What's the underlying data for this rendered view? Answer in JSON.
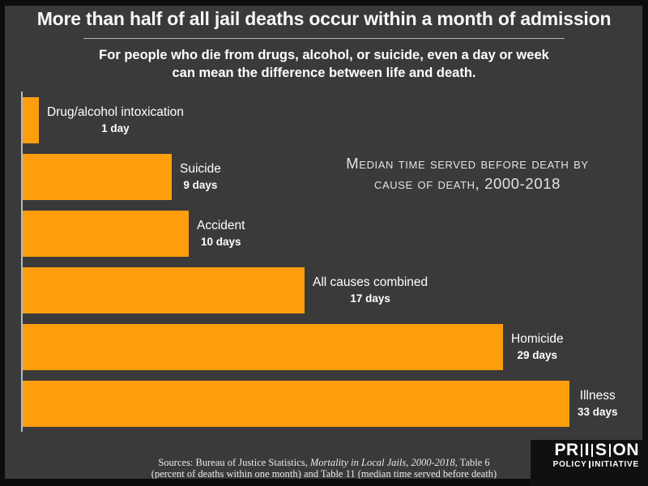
{
  "title": "More than half of all jail deaths occur within a month of admission",
  "subtitle": {
    "line1": "For people who die from drugs, alcohol, or suicide, even a day or week",
    "line2": "can mean the difference between life and death."
  },
  "chart_title": {
    "line1": "Median time served before death by",
    "line2": "cause of death, 2000-2018"
  },
  "chart_data": {
    "type": "bar",
    "orientation": "horizontal",
    "title": "Median time served before death by cause of death, 2000-2018",
    "unit": "days",
    "categories": [
      "Drug/alcohol intoxication",
      "Suicide",
      "Accident",
      "All causes combined",
      "Homicide",
      "Illness"
    ],
    "values": [
      1,
      9,
      10,
      17,
      29,
      33
    ],
    "value_labels": [
      "1 day",
      "9 days",
      "10 days",
      "17 days",
      "29 days",
      "33 days"
    ],
    "xlim": [
      0,
      33
    ],
    "grid": false,
    "legend": false,
    "bar_color": "#ff9e0d",
    "background_color": "#3a3a3a",
    "label_color": "#ffffff"
  },
  "footer": {
    "sources_prefix": "Sources: Bureau of Justice Statistics, ",
    "sources_italic": "Mortality in Local Jails, 2000-2018",
    "sources_suffix": ", Table 6",
    "sources_line2": "(percent of deaths within one month) and Table 11 (median time served before death)"
  },
  "logo": {
    "seg1": "PR",
    "seg2": "I",
    "seg3": "S",
    "seg4": "ON",
    "word1": "POLICY",
    "word2": "INITIATIVE"
  }
}
